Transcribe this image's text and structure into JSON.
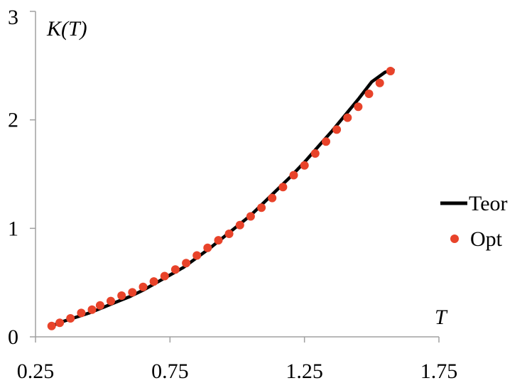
{
  "chart_data": {
    "type": "line",
    "xlabel": "T",
    "ylabel": "K(T)",
    "xlim": [
      0.25,
      1.75
    ],
    "ylim": [
      0,
      3
    ],
    "x_ticks": [
      "0.25",
      "0.75",
      "1.25",
      "1.75"
    ],
    "y_ticks": [
      "0",
      "1",
      "2",
      "3"
    ],
    "grid": false,
    "legend": "right",
    "series": [
      {
        "name": "Teor",
        "style": "line",
        "color": "#000000",
        "x": [
          0.31,
          0.35,
          0.4,
          0.45,
          0.5,
          0.55,
          0.6,
          0.65,
          0.7,
          0.75,
          0.8,
          0.85,
          0.9,
          0.95,
          1.0,
          1.05,
          1.1,
          1.15,
          1.2,
          1.25,
          1.3,
          1.35,
          1.4,
          1.45,
          1.5,
          1.55,
          1.58
        ],
        "values": [
          0.1,
          0.14,
          0.18,
          0.22,
          0.27,
          0.32,
          0.37,
          0.43,
          0.5,
          0.57,
          0.64,
          0.73,
          0.82,
          0.92,
          1.02,
          1.12,
          1.24,
          1.36,
          1.48,
          1.61,
          1.75,
          1.89,
          2.04,
          2.19,
          2.35,
          2.44,
          2.46
        ]
      },
      {
        "name": "Opt",
        "style": "scatter",
        "color": "#e8432a",
        "x": [
          0.31,
          0.34,
          0.38,
          0.42,
          0.46,
          0.49,
          0.53,
          0.57,
          0.61,
          0.65,
          0.69,
          0.73,
          0.77,
          0.81,
          0.85,
          0.89,
          0.93,
          0.97,
          1.01,
          1.05,
          1.09,
          1.13,
          1.17,
          1.21,
          1.25,
          1.29,
          1.33,
          1.37,
          1.41,
          1.45,
          1.49,
          1.53,
          1.57
        ],
        "values": [
          0.1,
          0.13,
          0.17,
          0.22,
          0.25,
          0.29,
          0.33,
          0.38,
          0.41,
          0.46,
          0.51,
          0.56,
          0.62,
          0.68,
          0.75,
          0.82,
          0.89,
          0.95,
          1.03,
          1.11,
          1.19,
          1.28,
          1.38,
          1.49,
          1.58,
          1.69,
          1.8,
          1.91,
          2.02,
          2.12,
          2.24,
          2.34,
          2.45
        ]
      }
    ]
  }
}
